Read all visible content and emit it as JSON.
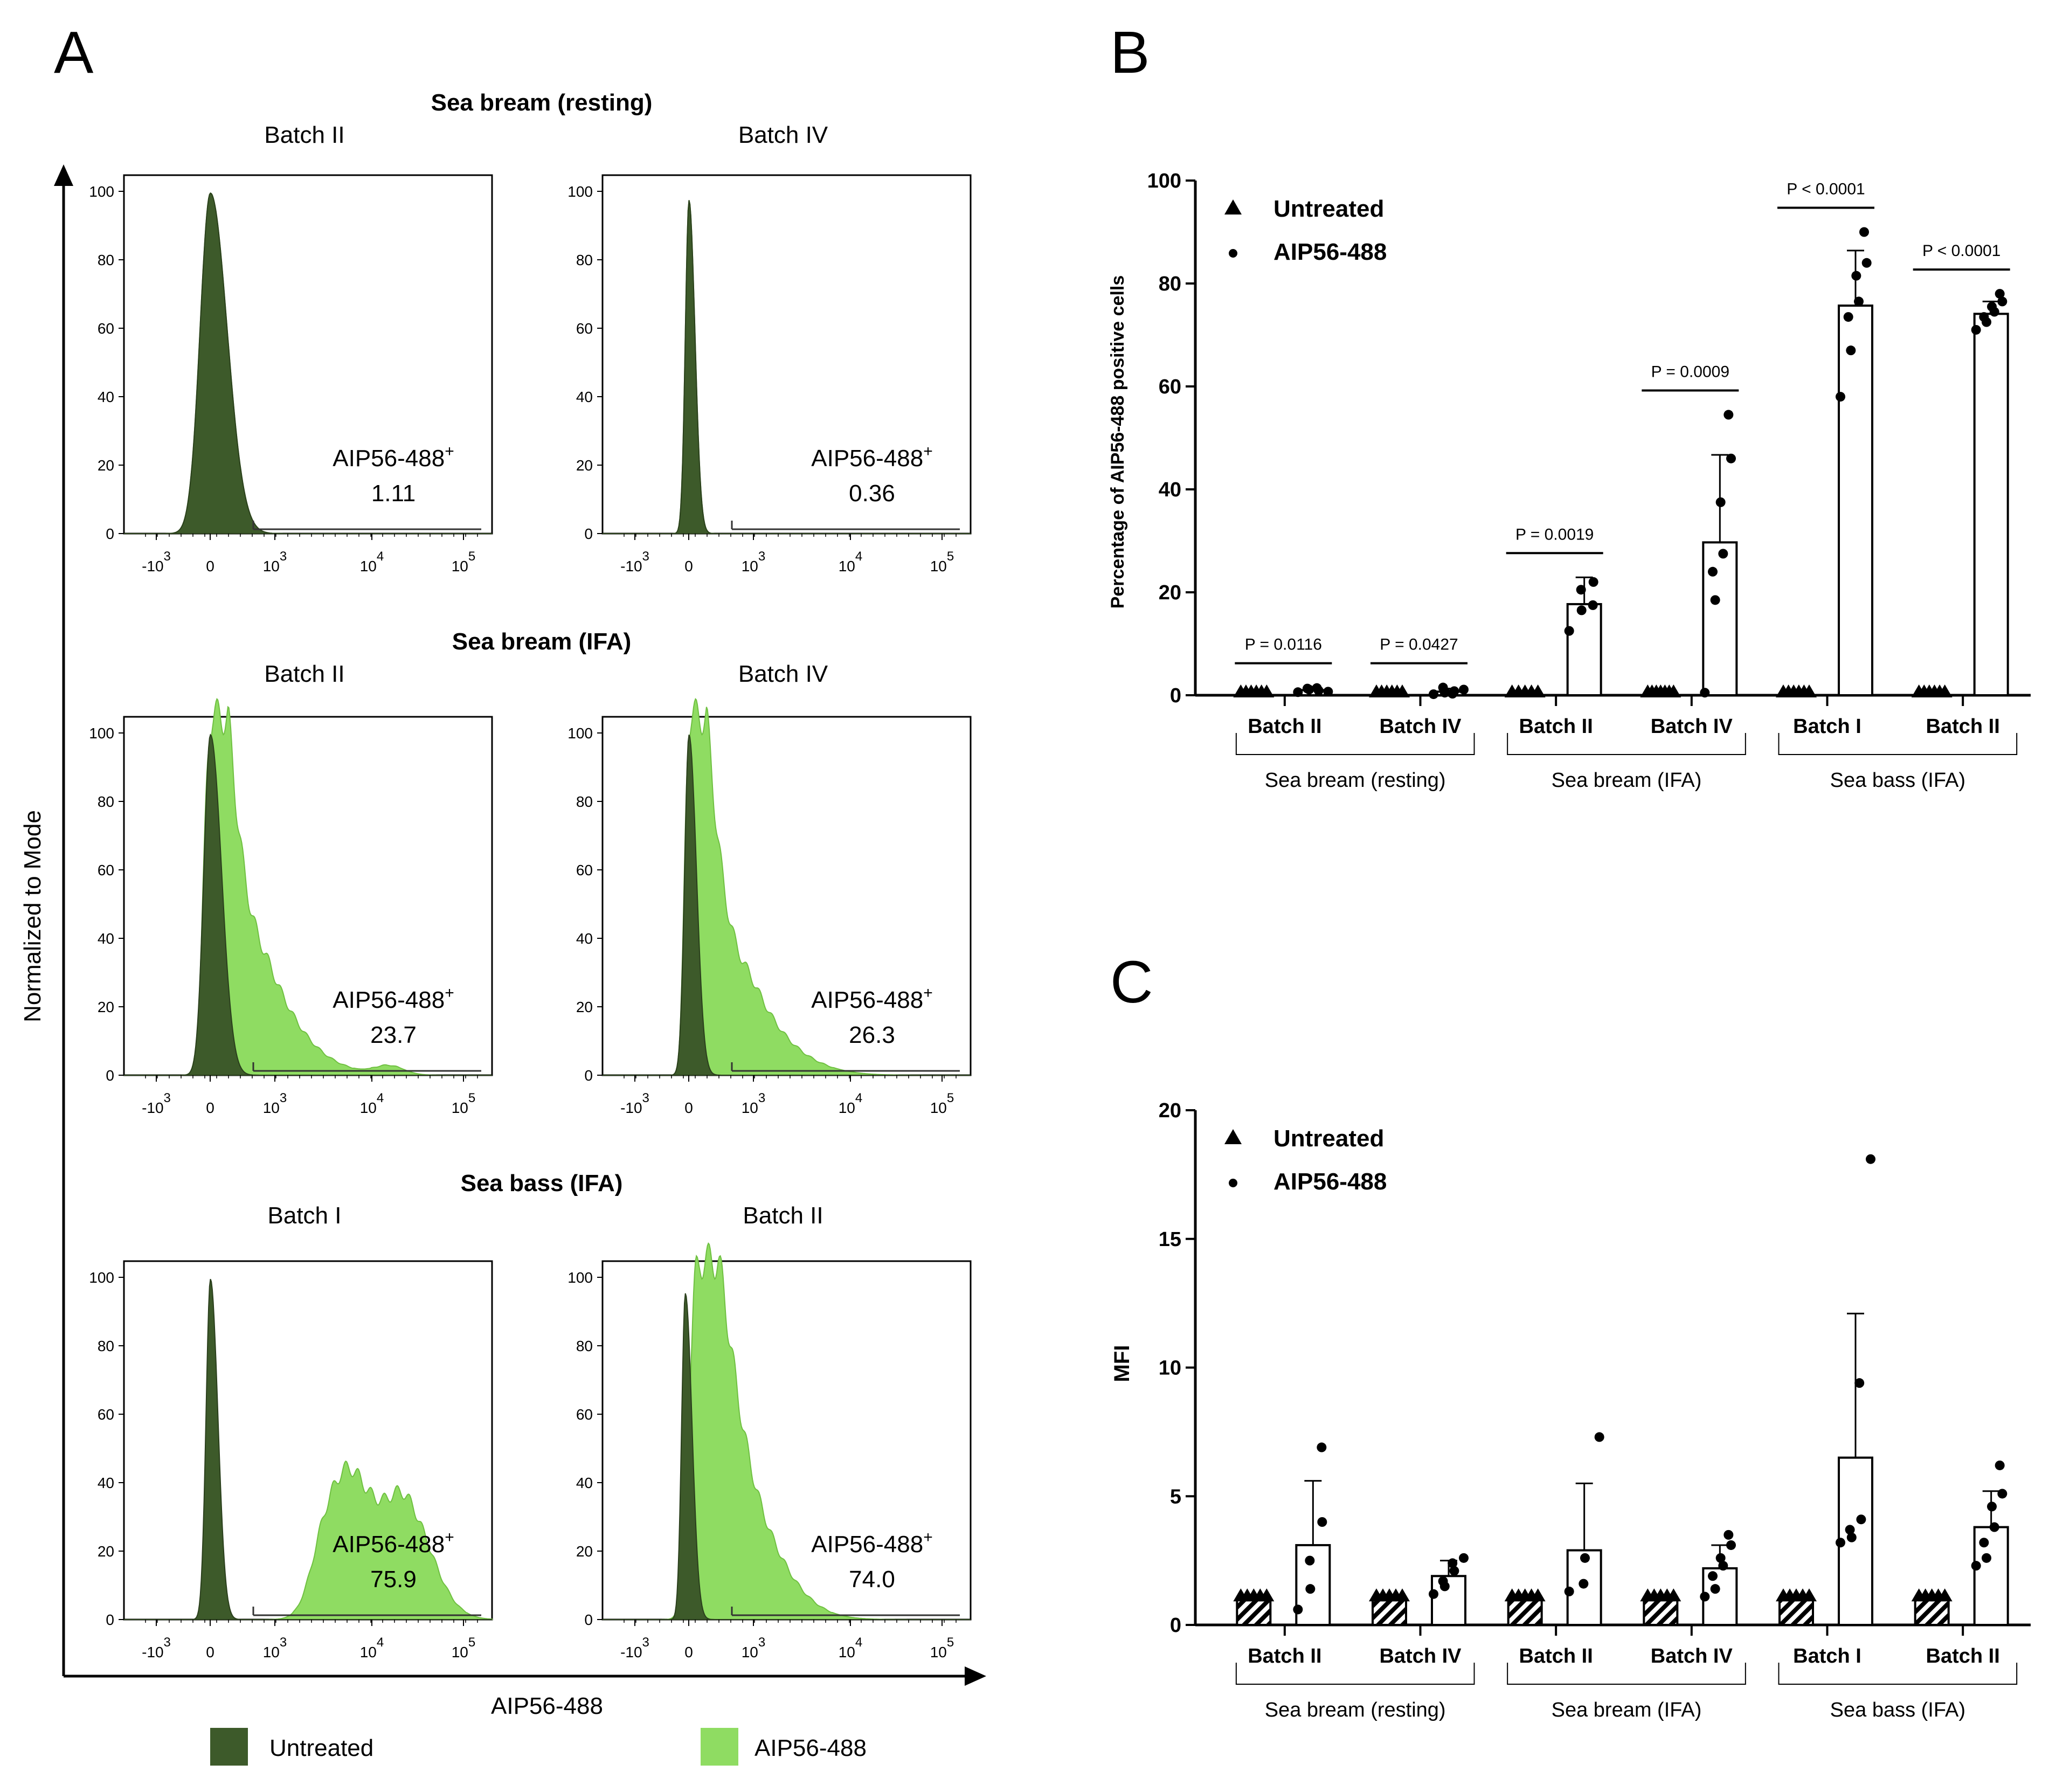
{
  "panels": {
    "a": "A",
    "b": "B",
    "c": "C"
  },
  "colors": {
    "untreated": "#3d5a2a",
    "aip": "#8fdc62",
    "untreated_edge": "#2a3f1c",
    "aip_edge": "#6fc041",
    "axis": "#000000"
  },
  "panel_a": {
    "y_label": "Normalized to Mode",
    "x_label": "AIP56-488",
    "gate_name": "AIP56-488",
    "gate_sup": "+",
    "y_ticks": [
      "0",
      "20",
      "40",
      "60",
      "80",
      "100"
    ],
    "x_ticks": [
      {
        "base": "-10",
        "exp": "3"
      },
      {
        "base": "0",
        "exp": ""
      },
      {
        "base": "10",
        "exp": "3"
      },
      {
        "base": "10",
        "exp": "4"
      },
      {
        "base": "10",
        "exp": "5"
      }
    ],
    "groups": [
      {
        "title": "Sea bream (resting)",
        "batches": [
          {
            "label": "Batch II",
            "gate": "1.11",
            "treated_peak": 0.95
          },
          {
            "label": "Batch IV",
            "gate": "0.36",
            "treated_peak": 0.95
          }
        ]
      },
      {
        "title": "Sea bream (IFA)",
        "batches": [
          {
            "label": "Batch II",
            "gate": "23.7",
            "treated_peak": 0.95
          },
          {
            "label": "Batch IV",
            "gate": "26.3",
            "treated_peak": 0.95
          }
        ]
      },
      {
        "title": "Sea bass (IFA)",
        "batches": [
          {
            "label": "Batch I",
            "gate": "75.9",
            "treated_peak": 0.35
          },
          {
            "label": "Batch II",
            "gate": "74.0",
            "treated_peak": 0.93
          }
        ]
      }
    ],
    "legend": [
      {
        "key": "untreated",
        "label": "Untreated"
      },
      {
        "key": "aip",
        "label": "AIP56-488"
      }
    ]
  },
  "chart_data": [
    {
      "type": "bar",
      "panel": "B",
      "ylabel": "Percentage of AIP56-488 positive cells",
      "xlabel": "",
      "ylim": [
        0,
        100
      ],
      "yticks": [
        0,
        20,
        40,
        60,
        80,
        100
      ],
      "legend": [
        "Untreated",
        "AIP56-488"
      ],
      "legend_position": "top-left",
      "categories": [
        "Batch II",
        "Batch IV",
        "Batch II",
        "Batch IV",
        "Batch I",
        "Batch II"
      ],
      "groups": [
        {
          "label": "Sea bream (resting)",
          "categories": [
            0,
            1
          ]
        },
        {
          "label": "Sea bream (IFA)",
          "categories": [
            2,
            3
          ]
        },
        {
          "label": "Sea bass (IFA)",
          "categories": [
            4,
            5
          ]
        }
      ],
      "series": [
        {
          "name": "Untreated",
          "marker": "triangle",
          "values": [
            0,
            0,
            0,
            0,
            0,
            0
          ],
          "errors": [
            0,
            0,
            0,
            0,
            0,
            0
          ],
          "points": [
            [
              0,
              0,
              0,
              0,
              0,
              0
            ],
            [
              0,
              0,
              0,
              0,
              0,
              0
            ],
            [
              0,
              0,
              0,
              0,
              0
            ],
            [
              0,
              0,
              0,
              0,
              0,
              0,
              0
            ],
            [
              0,
              0,
              0,
              0,
              0,
              0
            ],
            [
              0,
              0,
              0,
              0,
              0,
              0
            ]
          ]
        },
        {
          "name": "AIP56-488",
          "marker": "circle",
          "values": [
            1.0,
            0.7,
            17.7,
            29.7,
            75.7,
            74.1
          ],
          "errors": [
            0.5,
            0.6,
            5.2,
            17.0,
            10.7,
            2.4
          ],
          "points": [
            [
              0.6,
              1.1,
              1.3,
              0.9,
              1.4,
              0.7
            ],
            [
              0.2,
              0.5,
              1.5,
              0.8,
              0.3,
              1.1
            ],
            [
              12.5,
              16.5,
              20.5,
              22.0,
              17.5
            ],
            [
              0.5,
              18.5,
              24.0,
              27.5,
              37.5,
              46.0,
              54.5
            ],
            [
              58.0,
              67.0,
              73.5,
              76.5,
              81.5,
              84.0,
              90.0
            ],
            [
              71.0,
              72.5,
              73.5,
              74.5,
              75.5,
              76.5,
              78.0
            ]
          ]
        }
      ],
      "significance": [
        "P = 0.0116",
        "P = 0.0427",
        "P = 0.0019",
        "P = 0.0009",
        "P < 0.0001",
        "P < 0.0001"
      ]
    },
    {
      "type": "bar",
      "panel": "C",
      "ylabel": "MFI",
      "xlabel": "",
      "ylim": [
        0,
        20
      ],
      "yticks": [
        0,
        5,
        10,
        15,
        20
      ],
      "legend": [
        "Untreated",
        "AIP56-488"
      ],
      "legend_position": "top-left",
      "categories": [
        "Batch II",
        "Batch IV",
        "Batch II",
        "Batch IV",
        "Batch I",
        "Batch II"
      ],
      "groups": [
        {
          "label": "Sea bream (resting)",
          "categories": [
            0,
            1
          ]
        },
        {
          "label": "Sea bream (IFA)",
          "categories": [
            2,
            3
          ]
        },
        {
          "label": "Sea bass (IFA)",
          "categories": [
            4,
            5
          ]
        }
      ],
      "series": [
        {
          "name": "Untreated",
          "marker": "triangle",
          "values": [
            1,
            1,
            1,
            1,
            1,
            1
          ],
          "errors": [
            0,
            0,
            0,
            0,
            0,
            0
          ],
          "points": [
            [
              1,
              1,
              1,
              1,
              1
            ],
            [
              1,
              1,
              1,
              1,
              1
            ],
            [
              1,
              1,
              1,
              1,
              1
            ],
            [
              1,
              1,
              1,
              1,
              1
            ],
            [
              1,
              1,
              1,
              1,
              1
            ],
            [
              1,
              1,
              1,
              1,
              1
            ]
          ]
        },
        {
          "name": "AIP56-488",
          "marker": "circle",
          "values": [
            3.1,
            1.9,
            2.9,
            2.2,
            6.5,
            3.8
          ],
          "errors": [
            2.5,
            0.6,
            2.6,
            0.9,
            5.6,
            1.4
          ],
          "points": [
            [
              0.6,
              1.4,
              2.5,
              4.0,
              6.9
            ],
            [
              1.2,
              1.5,
              1.7,
              2.1,
              2.4,
              2.6
            ],
            [
              1.3,
              1.6,
              2.6,
              7.3
            ],
            [
              1.1,
              1.4,
              1.9,
              2.3,
              2.6,
              3.1,
              3.5
            ],
            [
              3.2,
              3.4,
              3.7,
              4.1,
              9.4,
              18.1
            ],
            [
              2.3,
              2.6,
              3.2,
              3.8,
              4.6,
              5.1,
              6.2
            ]
          ]
        }
      ],
      "significance": []
    }
  ]
}
